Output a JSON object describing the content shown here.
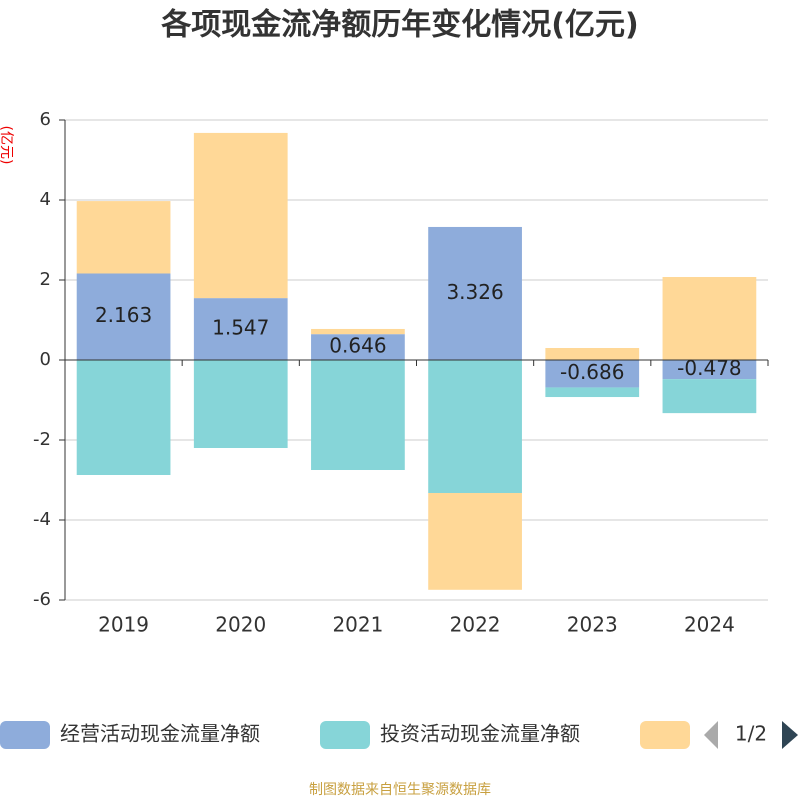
{
  "chart_data": {
    "type": "bar",
    "stacked": true,
    "title": "各项现金流净额历年变化情况(亿元)",
    "y_axis_label": "(亿元)",
    "categories": [
      "2019",
      "2020",
      "2021",
      "2022",
      "2023",
      "2024"
    ],
    "series": [
      {
        "name": "经营活动现金流量净额",
        "color": "#8eacdb",
        "values": [
          2.163,
          1.547,
          0.646,
          3.326,
          -0.686,
          -0.478
        ],
        "data_labels": true
      },
      {
        "name": "投资活动现金流量净额",
        "color": "#86d5d8",
        "values": [
          -2.875,
          -2.2,
          -2.75,
          -3.325,
          -0.24,
          -0.85
        ]
      },
      {
        "color": "#ffd897",
        "values": [
          1.81,
          4.13,
          0.13,
          -2.42,
          0.3,
          2.075
        ]
      }
    ],
    "ylim": [
      -6,
      6
    ],
    "yticks": [
      -6,
      -4,
      -2,
      0,
      2,
      4,
      6
    ],
    "grid": true,
    "legend_page": "1/2",
    "source": "制图数据来自恒生聚源数据库"
  }
}
